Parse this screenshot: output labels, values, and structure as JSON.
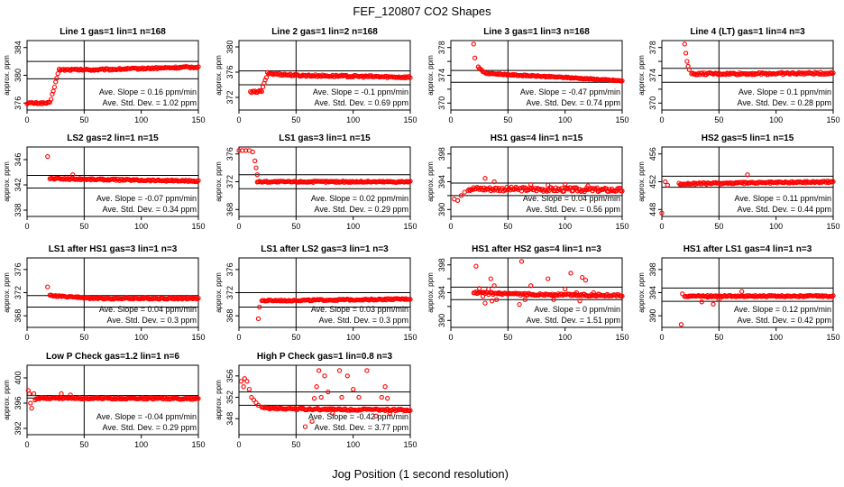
{
  "figure": {
    "title": "FEF_120807  CO2 Shapes",
    "xlabel": "Jog Position (1 second resolution)"
  },
  "colors": {
    "points": "#ff0000",
    "axis": "#000000",
    "text": "#000000"
  },
  "chart_data": [
    {
      "type": "scatter",
      "title": "Line 1 gas=1 lin=1 n=168",
      "ylabel": "approx. ppm",
      "xlim": [
        0,
        150
      ],
      "ylim": [
        375,
        385
      ],
      "xticks": [
        0,
        50,
        100,
        150
      ],
      "yticks": [
        376,
        380,
        384
      ],
      "yticklabels": [
        "376",
        "380",
        "384"
      ],
      "ref_lines": {
        "v": 50,
        "h": [
          382,
          379.5
        ]
      },
      "slope_text": "Ave. Slope = 0.16  ppm/min",
      "std_text": "Ave. Std. Dev. = 1.02  ppm",
      "series": {
        "name": "CO2",
        "start": 0,
        "end": 150,
        "noise": 0.12,
        "segments": [
          [
            0,
            376
          ],
          [
            20,
            376
          ],
          [
            28,
            380.8
          ],
          [
            60,
            380.8
          ],
          [
            150,
            381.2
          ]
        ],
        "outliers": []
      }
    },
    {
      "type": "scatter",
      "title": "Line 2 gas=1 lin=2 n=168",
      "ylabel": "approx. ppm",
      "xlim": [
        0,
        150
      ],
      "ylim": [
        370,
        381
      ],
      "xticks": [
        0,
        50,
        100,
        150
      ],
      "yticks": [
        372,
        376,
        380
      ],
      "yticklabels": [
        "372",
        "376",
        "380"
      ],
      "ref_lines": {
        "v": 50,
        "h": [
          376.2,
          374
        ]
      },
      "slope_text": "Ave. Slope = -0.1  ppm/min",
      "std_text": "Ave. Std. Dev. = 0.69  ppm",
      "series": {
        "name": "CO2",
        "start": 10,
        "end": 150,
        "noise": 0.15,
        "segments": [
          [
            10,
            372.8
          ],
          [
            20,
            373
          ],
          [
            25,
            375.8
          ],
          [
            50,
            375.5
          ],
          [
            150,
            375.2
          ]
        ],
        "outliers": []
      }
    },
    {
      "type": "scatter",
      "title": "Line 3 gas=1 lin=3 n=168",
      "ylabel": "approx. ppm",
      "xlim": [
        0,
        150
      ],
      "ylim": [
        369,
        379
      ],
      "xticks": [
        0,
        50,
        100,
        150
      ],
      "yticks": [
        370,
        372,
        374,
        376,
        378
      ],
      "yticklabels": [
        "370",
        "",
        "374",
        "",
        "378"
      ],
      "ref_lines": {
        "v": 50,
        "h": [
          374.7,
          373
        ]
      },
      "slope_text": "Ave. Slope = -0.47  ppm/min",
      "std_text": "Ave. Std. Dev. = 0.74  ppm",
      "series": {
        "name": "CO2",
        "start": 24,
        "end": 150,
        "noise": 0.08,
        "segments": [
          [
            24,
            375.2
          ],
          [
            30,
            374.3
          ],
          [
            60,
            374
          ],
          [
            100,
            373.7
          ],
          [
            150,
            373.2
          ]
        ],
        "outliers": [
          [
            20,
            378.5
          ],
          [
            21,
            376.5
          ]
        ]
      }
    },
    {
      "type": "scatter",
      "title": "Line 4 (LT) gas=1 lin=4 n=3",
      "ylabel": "approx. ppm",
      "xlim": [
        0,
        150
      ],
      "ylim": [
        369,
        379
      ],
      "xticks": [
        0,
        50,
        100,
        150
      ],
      "yticks": [
        370,
        372,
        374,
        376,
        378
      ],
      "yticklabels": [
        "370",
        "",
        "374",
        "",
        "378"
      ],
      "ref_lines": {
        "v": 50,
        "h": [
          375,
          373
        ]
      },
      "slope_text": "Ave. Slope = 0.1  ppm/min",
      "std_text": "Ave. Std. Dev. = 0.28  ppm",
      "series": {
        "name": "CO2",
        "start": 26,
        "end": 150,
        "noise": 0.15,
        "segments": [
          [
            26,
            374.2
          ],
          [
            150,
            374.3
          ]
        ],
        "outliers": [
          [
            20,
            378.5
          ],
          [
            21,
            377.2
          ],
          [
            22,
            376
          ],
          [
            23,
            375.3
          ],
          [
            24,
            374.8
          ]
        ]
      }
    },
    {
      "type": "scatter",
      "title": "LS2 gas=2 lin=1 n=15",
      "ylabel": "approx. ppm",
      "xlim": [
        0,
        150
      ],
      "ylim": [
        337,
        348
      ],
      "xticks": [
        0,
        50,
        100,
        150
      ],
      "yticks": [
        338,
        342,
        346
      ],
      "yticklabels": [
        "338",
        "342",
        "346"
      ],
      "ref_lines": {
        "v": 50,
        "h": [
          343.5,
          341.5
        ]
      },
      "slope_text": "Ave. Slope = -0.07  ppm/min",
      "std_text": "Ave. Std. Dev. = 0.34  ppm",
      "series": {
        "name": "CO2",
        "start": 20,
        "end": 150,
        "noise": 0.12,
        "segments": [
          [
            20,
            343
          ],
          [
            150,
            342.6
          ]
        ],
        "outliers": [
          [
            18,
            346.5
          ],
          [
            40,
            343.6
          ]
        ]
      }
    },
    {
      "type": "scatter",
      "title": "LS1 gas=3 lin=1 n=15",
      "ylabel": "approx. ppm",
      "xlim": [
        0,
        150
      ],
      "ylim": [
        367,
        377
      ],
      "xticks": [
        0,
        50,
        100,
        150
      ],
      "yticks": [
        368,
        372,
        376
      ],
      "yticklabels": [
        "368",
        "372",
        "376"
      ],
      "ref_lines": {
        "v": 50,
        "h": [
          373,
          371
        ]
      },
      "slope_text": "Ave. Slope = 0.02  ppm/min",
      "std_text": "Ave. Std. Dev. = 0.29  ppm",
      "series": {
        "name": "CO2",
        "start": 16,
        "end": 150,
        "noise": 0.1,
        "segments": [
          [
            16,
            372
          ],
          [
            150,
            372
          ]
        ],
        "outliers": [
          [
            0,
            376.5
          ],
          [
            3,
            376.5
          ],
          [
            6,
            376.5
          ],
          [
            9,
            376.5
          ],
          [
            12,
            376.3
          ],
          [
            14,
            375
          ],
          [
            15,
            374
          ],
          [
            16,
            373
          ]
        ]
      }
    },
    {
      "type": "scatter",
      "title": "HS1 gas=4 lin=1 n=15",
      "ylabel": "approx. ppm",
      "xlim": [
        0,
        150
      ],
      "ylim": [
        389,
        399
      ],
      "xticks": [
        0,
        50,
        100,
        150
      ],
      "yticks": [
        390,
        392,
        394,
        396,
        398
      ],
      "yticklabels": [
        "390",
        "",
        "394",
        "",
        "398"
      ],
      "ref_lines": {
        "v": 50,
        "h": [
          393.8,
          392
        ]
      },
      "slope_text": "Ave. Slope = 0.04  ppm/min",
      "std_text": "Ave. Std. Dev. = 0.56  ppm",
      "series": {
        "name": "CO2",
        "start": 15,
        "end": 150,
        "noise": 0.3,
        "segments": [
          [
            15,
            393
          ],
          [
            150,
            392.8
          ]
        ],
        "outliers": [
          [
            3,
            391.5
          ],
          [
            6,
            391.3
          ],
          [
            9,
            392
          ],
          [
            12,
            392.5
          ],
          [
            30,
            394.5
          ],
          [
            38,
            394
          ],
          [
            70,
            393.6
          ],
          [
            85,
            393.5
          ],
          [
            100,
            393.6
          ],
          [
            120,
            393.4
          ]
        ]
      }
    },
    {
      "type": "scatter",
      "title": "HS2 gas=5 lin=1 n=15",
      "ylabel": "approx. ppm",
      "xlim": [
        0,
        150
      ],
      "ylim": [
        447,
        457
      ],
      "xticks": [
        0,
        50,
        100,
        150
      ],
      "yticks": [
        448,
        452,
        456
      ],
      "yticklabels": [
        "448",
        "452",
        "456"
      ],
      "ref_lines": {
        "v": 50,
        "h": [
          452.8,
          451.2
        ]
      },
      "slope_text": "Ave. Slope = 0.11  ppm/min",
      "std_text": "Ave. Std. Dev. = 0.44  ppm",
      "series": {
        "name": "CO2",
        "start": 15,
        "end": 150,
        "noise": 0.12,
        "segments": [
          [
            15,
            451.7
          ],
          [
            150,
            452
          ]
        ],
        "outliers": [
          [
            3,
            452
          ],
          [
            5,
            451.5
          ],
          [
            0,
            447.5
          ],
          [
            75,
            453
          ]
        ]
      }
    },
    {
      "type": "scatter",
      "title": "LS1 after HS1 gas=3 lin=1 n=3",
      "ylabel": "approx. ppm",
      "xlim": [
        0,
        150
      ],
      "ylim": [
        366,
        378
      ],
      "xticks": [
        0,
        50,
        100,
        150
      ],
      "yticks": [
        368,
        372,
        376
      ],
      "yticklabels": [
        "368",
        "372",
        "376"
      ],
      "ref_lines": {
        "v": 50,
        "h": [
          371.5,
          369.5
        ]
      },
      "slope_text": "Ave. Slope = 0.04  ppm/min",
      "std_text": "Ave. Std. Dev. = 0.3  ppm",
      "series": {
        "name": "CO2",
        "start": 20,
        "end": 150,
        "noise": 0.12,
        "segments": [
          [
            20,
            371.5
          ],
          [
            60,
            371
          ],
          [
            150,
            371
          ]
        ],
        "outliers": [
          [
            18,
            373
          ]
        ]
      }
    },
    {
      "type": "scatter",
      "title": "LS1 after LS2 gas=3 lin=1 n=3",
      "ylabel": "approx. ppm",
      "xlim": [
        0,
        150
      ],
      "ylim": [
        366,
        378
      ],
      "xticks": [
        0,
        50,
        100,
        150
      ],
      "yticks": [
        368,
        372,
        376
      ],
      "yticklabels": [
        "368",
        "372",
        "376"
      ],
      "ref_lines": {
        "v": 50,
        "h": [
          372,
          369.5
        ]
      },
      "slope_text": "Ave. Slope = 0.03  ppm/min",
      "std_text": "Ave. Std. Dev. = 0.3  ppm",
      "series": {
        "name": "CO2",
        "start": 20,
        "end": 150,
        "noise": 0.12,
        "segments": [
          [
            20,
            370.6
          ],
          [
            150,
            370.9
          ]
        ],
        "outliers": [
          [
            17,
            367.5
          ],
          [
            18,
            369.5
          ]
        ]
      }
    },
    {
      "type": "scatter",
      "title": "HS1 after HS2 gas=4 lin=1 n=3",
      "ylabel": "approx. ppm",
      "xlim": [
        0,
        150
      ],
      "ylim": [
        389,
        399
      ],
      "xticks": [
        0,
        50,
        100,
        150
      ],
      "yticks": [
        390,
        392,
        394,
        396,
        398
      ],
      "yticklabels": [
        "390",
        "",
        "394",
        "",
        "398"
      ],
      "ref_lines": {
        "v": 50,
        "h": [
          394.8,
          393
        ]
      },
      "slope_text": "Ave. Slope = 0  ppm/min",
      "std_text": "Ave. Std. Dev. = 1.51  ppm",
      "series": {
        "name": "CO2",
        "start": 20,
        "end": 150,
        "noise": 0.15,
        "segments": [
          [
            20,
            394
          ],
          [
            45,
            393.8
          ],
          [
            150,
            393.6
          ]
        ],
        "outliers": [
          [
            22,
            397.8
          ],
          [
            25,
            394.6
          ],
          [
            28,
            393.5
          ],
          [
            30,
            392.5
          ],
          [
            33,
            394.5
          ],
          [
            35,
            396
          ],
          [
            36,
            392.8
          ],
          [
            38,
            395
          ],
          [
            40,
            393
          ],
          [
            42,
            394
          ],
          [
            62,
            398.5
          ],
          [
            60,
            392.3
          ],
          [
            65,
            393
          ],
          [
            70,
            395
          ],
          [
            85,
            396
          ],
          [
            90,
            393
          ],
          [
            100,
            394.5
          ],
          [
            105,
            396.8
          ],
          [
            110,
            394
          ],
          [
            113,
            392.8
          ],
          [
            115,
            396.2
          ],
          [
            118,
            395.8
          ],
          [
            125,
            394
          ]
        ]
      }
    },
    {
      "type": "scatter",
      "title": "HS1 after LS1 gas=4 lin=1 n=3",
      "ylabel": "approx. ppm",
      "xlim": [
        0,
        150
      ],
      "ylim": [
        388,
        400
      ],
      "xticks": [
        0,
        50,
        100,
        150
      ],
      "yticks": [
        390,
        394,
        398
      ],
      "yticklabels": [
        "390",
        "394",
        "398"
      ],
      "ref_lines": {
        "v": 50,
        "h": [
          394.8,
          392.5
        ]
      },
      "slope_text": "Ave. Slope = 0.12  ppm/min",
      "std_text": "Ave. Std. Dev. = 0.42  ppm",
      "series": {
        "name": "CO2",
        "start": 20,
        "end": 150,
        "noise": 0.12,
        "segments": [
          [
            20,
            393.4
          ],
          [
            150,
            393.4
          ]
        ],
        "outliers": [
          [
            17,
            388.5
          ],
          [
            18,
            393.8
          ],
          [
            35,
            392.4
          ],
          [
            40,
            393.2
          ],
          [
            45,
            392
          ],
          [
            50,
            392.8
          ],
          [
            70,
            394.2
          ]
        ]
      }
    },
    {
      "type": "scatter",
      "title": "Low P Check gas=1.2 lin=1 n=6",
      "ylabel": "approx. ppm",
      "xlim": [
        0,
        150
      ],
      "ylim": [
        391,
        402
      ],
      "xticks": [
        0,
        50,
        100,
        150
      ],
      "yticks": [
        392,
        396,
        400
      ],
      "yticklabels": [
        "392",
        "396",
        "400"
      ],
      "ref_lines": {
        "v": 50,
        "h": [
          397.2,
          396.8
        ]
      },
      "slope_text": "Ave. Slope = -0.04  ppm/min",
      "std_text": "Ave. Std. Dev. = 0.29  ppm",
      "series": {
        "name": "CO2",
        "start": 8,
        "end": 150,
        "noise": 0.12,
        "segments": [
          [
            8,
            396.8
          ],
          [
            150,
            396.7
          ]
        ],
        "outliers": [
          [
            1,
            398
          ],
          [
            2,
            397.5
          ],
          [
            3,
            396
          ],
          [
            4,
            395.2
          ],
          [
            6,
            397.5
          ],
          [
            7,
            396.5
          ],
          [
            30,
            397.5
          ],
          [
            38,
            397.3
          ]
        ]
      }
    },
    {
      "type": "scatter",
      "title": "High P Check gas=1 lin=0.8 n=3",
      "ylabel": "approx. ppm",
      "xlim": [
        0,
        150
      ],
      "ylim": [
        345,
        358
      ],
      "xticks": [
        0,
        50,
        100,
        150
      ],
      "yticks": [
        348,
        352,
        356
      ],
      "yticklabels": [
        "348",
        "352",
        "356"
      ],
      "ref_lines": {
        "v": 50,
        "h": [
          353,
          350.5
        ]
      },
      "slope_text": "Ave. Slope = -0.42  ppm/min",
      "std_text": "Ave. Std. Dev. = 3.77  ppm",
      "series": {
        "name": "CO2",
        "start": 20,
        "end": 150,
        "noise": 0.18,
        "segments": [
          [
            20,
            350
          ],
          [
            60,
            349.8
          ],
          [
            150,
            349.6
          ]
        ],
        "outliers": [
          [
            2,
            355
          ],
          [
            4,
            354
          ],
          [
            5,
            355.5
          ],
          [
            7,
            355
          ],
          [
            9,
            353.5
          ],
          [
            11,
            352
          ],
          [
            13,
            351.5
          ],
          [
            15,
            351
          ],
          [
            17,
            350.5
          ],
          [
            58,
            346.5
          ],
          [
            64,
            347.5
          ],
          [
            66,
            351.8
          ],
          [
            68,
            354
          ],
          [
            70,
            357
          ],
          [
            72,
            352
          ],
          [
            75,
            356
          ],
          [
            78,
            353
          ],
          [
            82,
            349
          ],
          [
            88,
            357
          ],
          [
            90,
            352
          ],
          [
            95,
            356
          ],
          [
            100,
            353.5
          ],
          [
            105,
            352
          ],
          [
            112,
            357
          ],
          [
            120,
            348.5
          ],
          [
            125,
            352
          ],
          [
            128,
            354
          ],
          [
            130,
            351.8
          ],
          [
            132,
            349
          ]
        ]
      }
    }
  ]
}
